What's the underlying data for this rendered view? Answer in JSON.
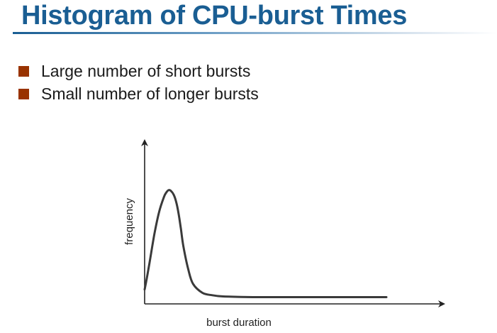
{
  "slide": {
    "title": "Histogram of CPU-burst Times",
    "bullets": [
      "Large number of short bursts",
      "Small number of longer bursts"
    ],
    "colors": {
      "title": "#1a5e93",
      "bullet_marker": "#993300",
      "curve": "#3a3a3a"
    }
  },
  "chart_data": {
    "type": "line",
    "xlabel": "burst duration",
    "ylabel": "frequency",
    "x_ticks": [],
    "y_ticks": [],
    "grid": false,
    "series": [
      {
        "x": [
          0,
          1,
          2,
          4,
          6,
          8,
          9,
          10,
          11,
          12,
          13,
          14,
          15,
          16,
          18,
          20,
          24,
          28,
          32,
          40,
          50,
          60,
          70,
          80,
          90,
          100
        ],
        "values": [
          7,
          18,
          30,
          55,
          75,
          88,
          92,
          94,
          93,
          90,
          84,
          74,
          60,
          45,
          25,
          12,
          4,
          2,
          1,
          0.5,
          0.3,
          0.3,
          0.3,
          0.3,
          0.3,
          0.3
        ]
      }
    ],
    "xlim": [
      0,
      100
    ],
    "ylim": [
      0,
      100
    ]
  }
}
